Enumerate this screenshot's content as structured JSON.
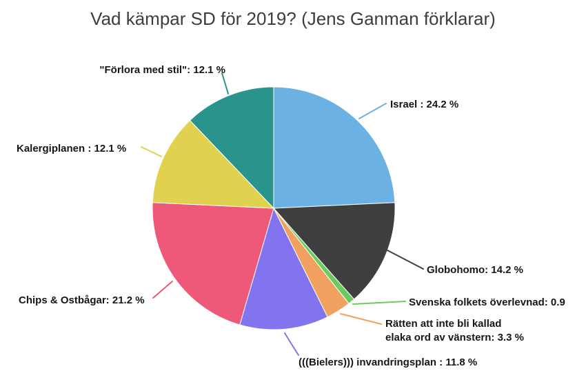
{
  "chart_data": {
    "type": "pie",
    "title": "Vad kämpar SD för 2019? (Jens Ganman förklarar)",
    "legend_position": "none",
    "start_angle_deg": -90,
    "direction": "clockwise",
    "slices": [
      {
        "id": "israel",
        "name": "Israel",
        "value": 24.2,
        "label": "Israel : 24.2 %",
        "color": "#6cb1e4"
      },
      {
        "id": "globohomo",
        "name": "Globohomo",
        "value": 14.2,
        "label": "Globohomo: 14.2 %",
        "color": "#3f3f3f"
      },
      {
        "id": "svenska-folkets-overlevnad",
        "name": "Svenska folkets överlevnad",
        "value": 0.9,
        "label": "Svenska folkets överlevnad: 0.9",
        "color": "#6ccb5f"
      },
      {
        "id": "ratten-att-inte-bli-kallad",
        "name": "Rätten att inte bli kallad elaka ord av vänstern",
        "value": 3.3,
        "label": "Rätten att inte bli kallad\nelaka ord av vänstern: 3.3 %",
        "color": "#f0a15f"
      },
      {
        "id": "bielers-invandringsplan",
        "name": "(((Bielers))) invandringsplan",
        "value": 11.8,
        "label": "(((Bielers))) invandringsplan : 11.8 %",
        "color": "#8273ee"
      },
      {
        "id": "chips-ostbagar",
        "name": "Chips & Ostbågar",
        "value": 21.2,
        "label": "Chips & Ostbågar: 21.2 %",
        "color": "#ee5879"
      },
      {
        "id": "kalergiplanen",
        "name": "Kalergiplanen",
        "value": 12.1,
        "label": "Kalergiplanen : 12.1 %",
        "color": "#e0d24e"
      },
      {
        "id": "forlora-med-stil",
        "name": "\"Förlora med stil\"",
        "value": 12.1,
        "label": "\"Förlora med stil\": 12.1 %",
        "color": "#2a938c"
      }
    ]
  }
}
